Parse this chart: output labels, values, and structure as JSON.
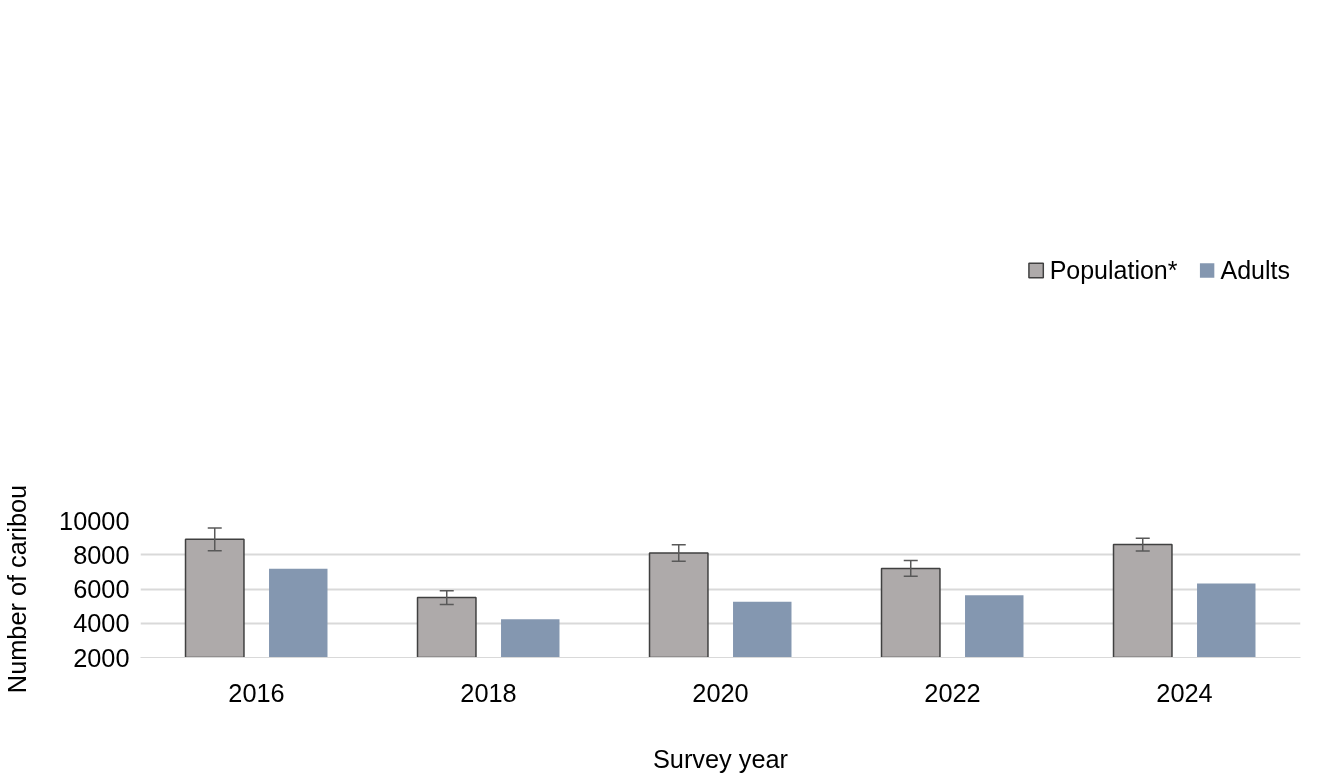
{
  "chart_data": {
    "type": "bar",
    "xlabel": "Survey year",
    "ylabel": "Number of caribou",
    "categories": [
      "2016",
      "2018",
      "2020",
      "2022",
      "2024"
    ],
    "series": [
      {
        "name": "Population*",
        "color": "#aeaaaa",
        "values": [
          8900,
          5500,
          8100,
          7200,
          8600
        ],
        "errors": [
          [
            8230,
            9560
          ],
          [
            5100,
            5900
          ],
          [
            7620,
            8580
          ],
          [
            6740,
            7660
          ],
          [
            8220,
            8970
          ]
        ]
      },
      {
        "name": "Adults",
        "color": "#8497b0",
        "values": [
          7180,
          4240,
          5260,
          5630,
          6320
        ]
      }
    ],
    "ylim": [
      2000,
      10000
    ],
    "yticks": [
      2000,
      4000,
      6000,
      8000,
      10000
    ],
    "grid": "y",
    "legend": "top right"
  }
}
